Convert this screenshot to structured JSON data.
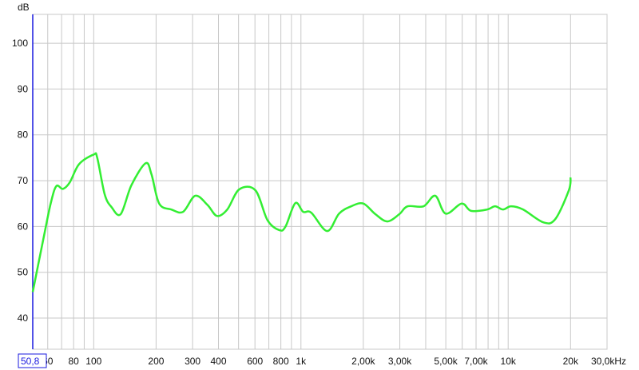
{
  "chart_data": {
    "type": "line",
    "ylabel": "dB",
    "xscale": "log",
    "xlim": [
      50.8,
      30000
    ],
    "ylim": [
      33.2,
      106.3
    ],
    "grid": true,
    "cursor_readout": "50,8",
    "x_gridlines": [
      60,
      70,
      80,
      90,
      100,
      200,
      300,
      400,
      500,
      600,
      700,
      800,
      900,
      1000,
      2000,
      3000,
      4000,
      5000,
      6000,
      7000,
      8000,
      9000,
      10000,
      20000,
      30000
    ],
    "x_ticks": [
      {
        "value": 60,
        "label": "60"
      },
      {
        "value": 80,
        "label": "80"
      },
      {
        "value": 100,
        "label": "100"
      },
      {
        "value": 200,
        "label": "200"
      },
      {
        "value": 300,
        "label": "300"
      },
      {
        "value": 400,
        "label": "400"
      },
      {
        "value": 600,
        "label": "600"
      },
      {
        "value": 800,
        "label": "800"
      },
      {
        "value": 1000,
        "label": "1k"
      },
      {
        "value": 2000,
        "label": "2,00k"
      },
      {
        "value": 3000,
        "label": "3,00k"
      },
      {
        "value": 5000,
        "label": "5,00k"
      },
      {
        "value": 7000,
        "label": "7,00k"
      },
      {
        "value": 10000,
        "label": "10k"
      },
      {
        "value": 20000,
        "label": "20k"
      },
      {
        "value": 30000,
        "label": "30,0kHz"
      }
    ],
    "y_ticks": [
      {
        "value": 40,
        "label": "40"
      },
      {
        "value": 50,
        "label": "50"
      },
      {
        "value": 60,
        "label": "60"
      },
      {
        "value": 70,
        "label": "70"
      },
      {
        "value": 80,
        "label": "80"
      },
      {
        "value": 90,
        "label": "90"
      },
      {
        "value": 100,
        "label": "100"
      }
    ],
    "series": [
      {
        "color": "#33ee33",
        "x": [
          50.8,
          57,
          62,
          66,
          71,
          76.6,
          85,
          100,
          104,
          113,
          122,
          135,
          152,
          178,
          190,
          207,
          237,
          270,
          309,
          354,
          393,
          441,
          504,
          603,
          689,
          786,
          843,
          939,
          1025,
          1122,
          1338,
          1527,
          1747,
          1999,
          2284,
          2611,
          2986,
          3268,
          3904,
          4447,
          4993,
          5960,
          6626,
          7912,
          8644,
          9447,
          10320,
          11800,
          14770,
          16880,
          19630,
          20000
        ],
        "y": [
          45.7,
          57,
          65,
          68.8,
          68.2,
          69.6,
          73.6,
          75.7,
          75,
          67,
          64.2,
          62.7,
          69,
          73.8,
          71.4,
          65,
          63.7,
          63.2,
          66.7,
          64.7,
          62.3,
          63.7,
          68.1,
          67.9,
          61.4,
          59.2,
          60,
          65.1,
          63.2,
          63,
          59,
          62.8,
          64.4,
          65,
          62.7,
          61.1,
          62.7,
          64.4,
          64.4,
          66.7,
          62.8,
          65,
          63.4,
          63.7,
          64.4,
          63.7,
          64.4,
          63.7,
          60.9,
          61.6,
          67.9,
          70.7
        ]
      }
    ]
  }
}
